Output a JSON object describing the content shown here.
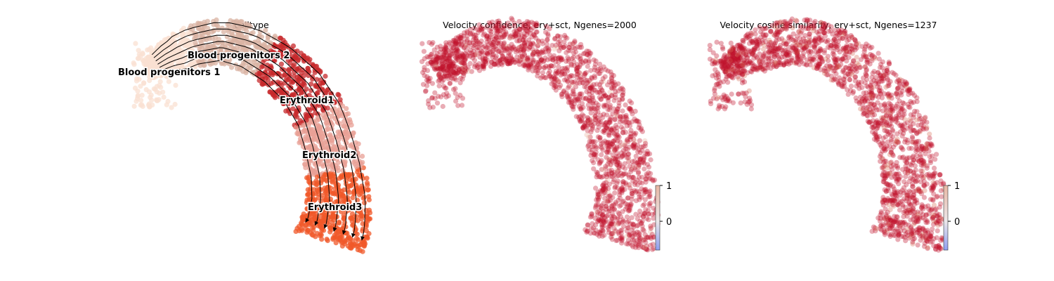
{
  "chart_data": [
    {
      "type": "scatter",
      "title": "celltype",
      "xlabel": "",
      "ylabel": "",
      "grid": false,
      "colors": {
        "Blood progenitors 1": "#f9e0d2",
        "Blood progenitors 2": "#d9b3a3",
        "Erythroid1": "#c72a2c",
        "Erythroid2": "#e8a095",
        "Erythroid3": "#f0582a"
      },
      "overlay": "velocity streamlines with arrowheads",
      "cluster_labels": [
        "Blood progenitors 1",
        "Blood progenitors 2",
        "Erythroid1",
        "Erythroid2",
        "Erythroid3"
      ]
    },
    {
      "type": "scatter",
      "title": "Velocity confidence, ery+sct, Ngenes=2000",
      "xlabel": "",
      "ylabel": "",
      "grid": false,
      "colormap": "coolwarm",
      "dominant_color": "#c0102a",
      "colorbar": {
        "ticks": [
          "1",
          "0"
        ],
        "range_approx": [
          -0.8,
          1
        ],
        "placement": "bottom-right"
      }
    },
    {
      "type": "scatter",
      "title": "Velocity cosine similarity, ery+sct, Ngenes=1237",
      "xlabel": "",
      "ylabel": "",
      "grid": false,
      "colormap": "coolwarm",
      "dominant_color": "#c0102a",
      "colorbar": {
        "ticks": [
          "1",
          "0"
        ],
        "range_approx": [
          -0.8,
          1
        ],
        "placement": "bottom-right"
      }
    }
  ]
}
